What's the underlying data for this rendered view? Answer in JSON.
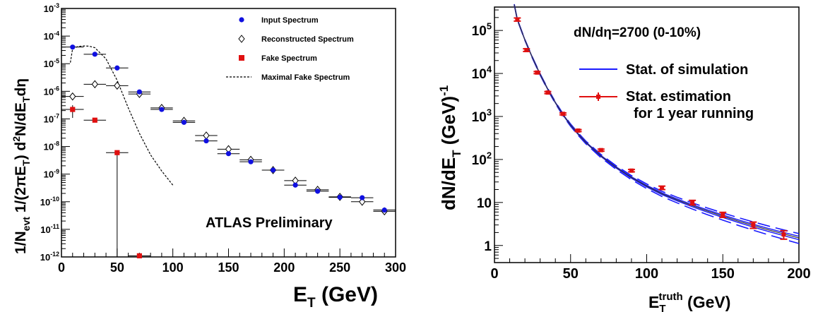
{
  "chart_data": [
    {
      "type": "scatter",
      "xlabel": "E_T (GeV)",
      "ylabel": "1/N_evt 1/(2πE_T) d²N/dE_T dη",
      "xlim": [
        0,
        300
      ],
      "ylim": [
        1e-12,
        0.001
      ],
      "yscale": "log",
      "x_ticks": [
        "0",
        "50",
        "100",
        "150",
        "200",
        "250",
        "300"
      ],
      "y_ticks": [
        "10^-12",
        "10^-11",
        "10^-10",
        "10^-9",
        "10^-8",
        "10^-7",
        "10^-6",
        "10^-5",
        "10^-4",
        "10^-3"
      ],
      "annotation": "ATLAS Preliminary",
      "legend_position": "top-right",
      "series": [
        {
          "name": "Input Spectrum",
          "marker": "circle",
          "color": "#1010e0",
          "x": [
            10,
            30,
            50,
            70,
            90,
            110,
            130,
            150,
            170,
            190,
            210,
            230,
            250,
            270,
            290
          ],
          "y": [
            4e-05,
            2.2e-05,
            7e-06,
            9.5e-07,
            2.2e-07,
            7.5e-08,
            1.6e-08,
            5.5e-09,
            2.8e-09,
            1.4e-09,
            4e-10,
            2.4e-10,
            1.45e-10,
            1.4e-10,
            5e-11
          ]
        },
        {
          "name": "Reconstructed Spectrum",
          "marker": "diamond-open",
          "color": "#000000",
          "x": [
            10,
            30,
            50,
            70,
            90,
            110,
            130,
            150,
            170,
            190,
            210,
            230,
            250,
            270,
            290
          ],
          "y": [
            6.5e-07,
            1.8e-06,
            1.6e-06,
            8e-07,
            2.5e-07,
            8.5e-08,
            2.5e-08,
            8e-09,
            3.3e-09,
            1.4e-09,
            5.8e-10,
            2.7e-10,
            1.5e-10,
            1e-10,
            4.5e-11
          ]
        },
        {
          "name": "Fake Spectrum",
          "marker": "square",
          "color": "#e01010",
          "x": [
            10,
            30,
            50,
            70
          ],
          "y": [
            2.2e-07,
            9e-08,
            6e-09,
            1.1e-12
          ]
        },
        {
          "name": "Maximal Fake Spectrum",
          "marker": "dashed-line",
          "color": "#000000",
          "x": [
            8,
            10,
            15,
            20,
            25,
            30,
            40,
            50,
            60,
            70,
            80,
            90,
            100
          ],
          "y": [
            1.1e-05,
            3.5e-05,
            4.2e-05,
            4.4e-05,
            4.3e-05,
            3.8e-05,
            1.5e-05,
            2.5e-06,
            2.5e-07,
            3e-08,
            5e-09,
            1.3e-09,
            4e-10
          ]
        }
      ]
    },
    {
      "type": "line",
      "xlabel": "E_T^truth (GeV)",
      "ylabel": "dN/dE_T (GeV)^-1",
      "xlim": [
        0,
        200
      ],
      "ylim": [
        0.4,
        350000.0
      ],
      "yscale": "log",
      "x_ticks": [
        "0",
        "50",
        "100",
        "150",
        "200"
      ],
      "y_ticks": [
        "1",
        "10",
        "10^2",
        "10^3",
        "10^4",
        "10^5"
      ],
      "annotation": "dN/dη=2700 (0-10%)",
      "legend_position": "top-right",
      "series": [
        {
          "name": "Stat. of simulation",
          "color": "#1a1aff",
          "x": [
            13,
            15,
            20,
            25,
            30,
            35,
            40,
            45,
            50,
            55,
            60,
            70,
            80,
            90,
            100,
            110,
            120,
            130,
            140,
            150,
            160,
            170,
            180,
            190,
            200
          ],
          "y": [
            400000.0,
            180000.0,
            60000.0,
            23000.0,
            9500.0,
            4300.0,
            2100.0,
            1100.0,
            630,
            390,
            250,
            120,
            65,
            38,
            24,
            16,
            11.5,
            8.4,
            6.3,
            4.8,
            3.7,
            2.9,
            2.3,
            1.85,
            1.5
          ]
        },
        {
          "name": "Stat. estimation for 1 year running",
          "color": "#e01010",
          "x": [
            15,
            21,
            28,
            35,
            45,
            55,
            70,
            90,
            110,
            130,
            150,
            170,
            190
          ],
          "y": [
            180000.0,
            35000.0,
            10500.0,
            3600.0,
            1150.0,
            470,
            165,
            55,
            22,
            10,
            5.2,
            3.0,
            1.8
          ],
          "yerr": [
            15000.0,
            2500.0,
            600,
            200,
            60,
            25,
            9,
            3.5,
            2,
            1.2,
            0.7,
            0.5,
            0.4
          ]
        }
      ]
    }
  ]
}
